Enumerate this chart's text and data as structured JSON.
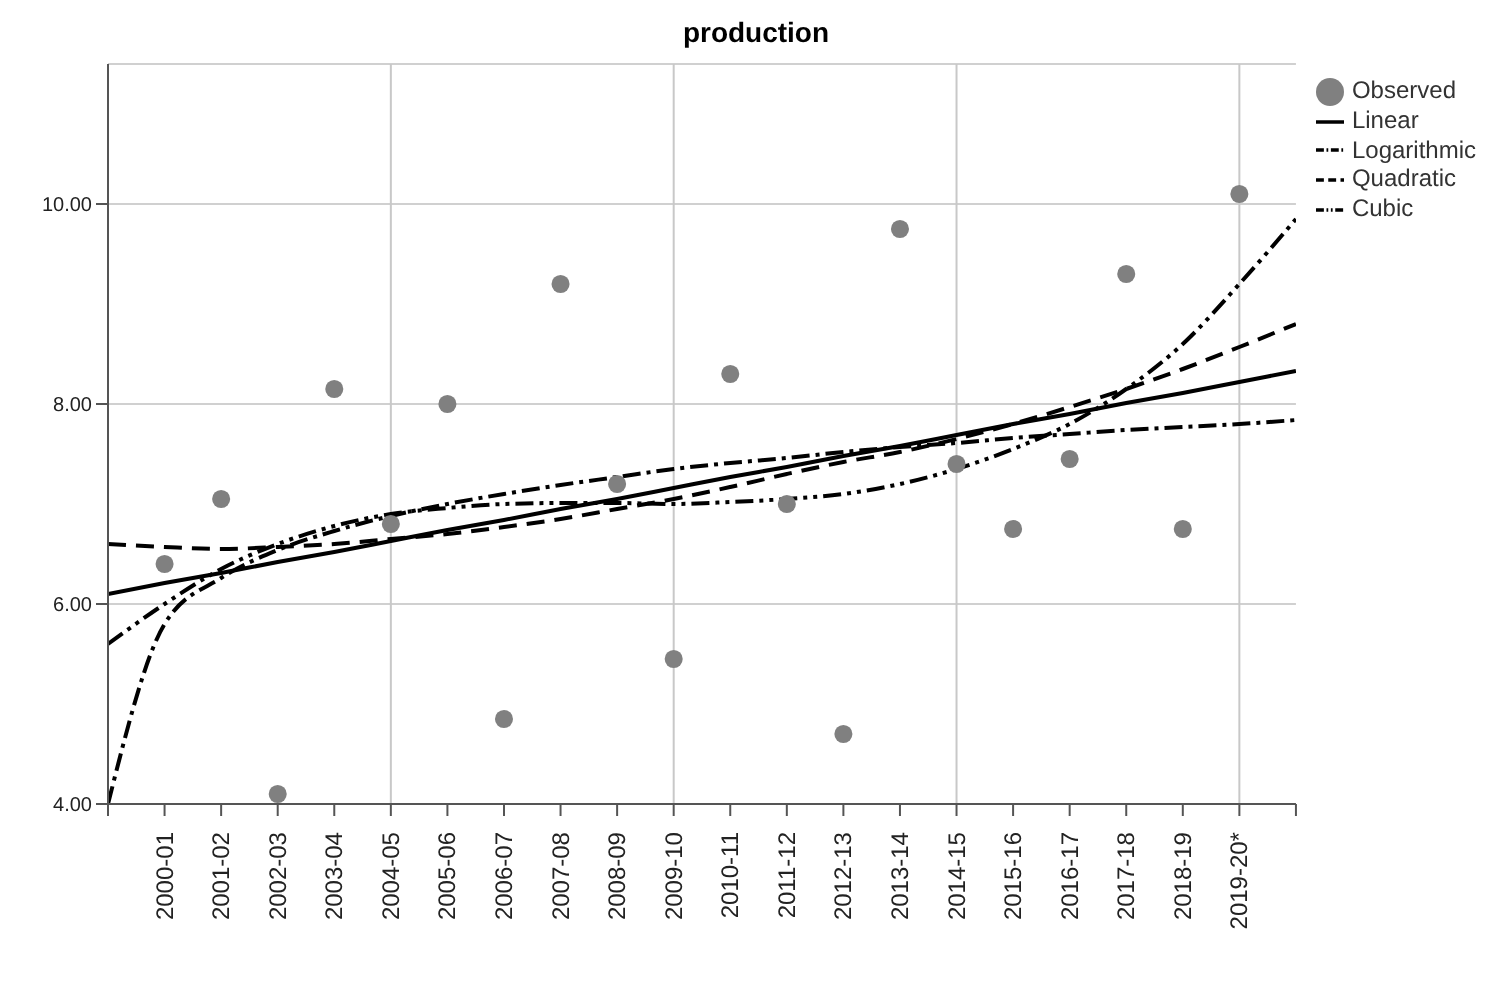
{
  "chart_data": {
    "type": "scatter",
    "title": "production",
    "categories": [
      null,
      "2000-01",
      "2001-02",
      "2002-03",
      "2003-04",
      "2004-05",
      "2005-06",
      "2006-07",
      "2007-08",
      "2008-09",
      "2009-10",
      "2010-11",
      "2011-12",
      "2012-13",
      "2013-14",
      "2014-15",
      "2015-16",
      "2016-17",
      "2017-18",
      "2018-19",
      "2019-20*",
      null
    ],
    "ylim": [
      4,
      11.4
    ],
    "yticks": [
      {
        "value": 4,
        "label": "4.00"
      },
      {
        "value": 6,
        "label": "6.00"
      },
      {
        "value": 8,
        "label": "8.00"
      },
      {
        "value": 10,
        "label": "10.00"
      }
    ],
    "grid": "y",
    "ref_lines": [
      {
        "axis": "x",
        "value": "2004-05",
        "color": "#c8c8c8"
      },
      {
        "axis": "x",
        "value": "2009-10",
        "color": "#c8c8c8"
      },
      {
        "axis": "x",
        "value": "2014-15",
        "color": "#c8c8c8"
      },
      {
        "axis": "x",
        "value": "2019-20*",
        "color": "#c8c8c8"
      }
    ],
    "legend": "top right",
    "series": [
      {
        "name": "Observed",
        "color": "#808080",
        "marker": "circle",
        "values": [
          null,
          6.4,
          7.05,
          4.1,
          8.15,
          6.8,
          8.0,
          4.85,
          9.2,
          7.2,
          5.45,
          8.3,
          7.0,
          4.7,
          9.75,
          7.4,
          6.75,
          7.45,
          9.3,
          6.75,
          10.1,
          null
        ]
      },
      {
        "name": "Linear",
        "type": "line",
        "color": "#000000",
        "marker": "none",
        "line_style": "solid",
        "values": [
          6.1,
          6.21,
          6.31,
          6.42,
          6.52,
          6.63,
          6.74,
          6.84,
          6.95,
          7.05,
          7.16,
          7.27,
          7.37,
          7.48,
          7.58,
          7.69,
          7.8,
          7.9,
          8.01,
          8.11,
          8.22,
          8.33
        ]
      },
      {
        "name": "Logarithmic",
        "type": "line",
        "color": "#000000",
        "marker": "none",
        "line_style": "dashdot",
        "values": [
          4.0,
          5.8,
          6.26,
          6.54,
          6.73,
          6.88,
          7.0,
          7.1,
          7.19,
          7.27,
          7.35,
          7.41,
          7.46,
          7.52,
          7.57,
          7.61,
          7.66,
          7.7,
          7.74,
          7.77,
          7.8,
          7.84
        ]
      },
      {
        "name": "Quadratic",
        "type": "line",
        "color": "#000000",
        "marker": "none",
        "line_style": "dashed",
        "values": [
          6.6,
          6.57,
          6.55,
          6.57,
          6.6,
          6.65,
          6.7,
          6.77,
          6.85,
          6.95,
          7.05,
          7.17,
          7.3,
          7.42,
          7.52,
          7.65,
          7.8,
          7.97,
          8.15,
          8.35,
          8.57,
          8.8
        ]
      },
      {
        "name": "Cubic",
        "type": "line",
        "color": "#000000",
        "marker": "none",
        "line_style": "dashdotdot",
        "values": [
          5.6,
          6.0,
          6.35,
          6.6,
          6.78,
          6.9,
          6.96,
          7.0,
          7.01,
          7.01,
          7.0,
          7.02,
          7.05,
          7.1,
          7.2,
          7.35,
          7.55,
          7.8,
          8.15,
          8.6,
          9.2,
          9.85
        ]
      }
    ]
  }
}
